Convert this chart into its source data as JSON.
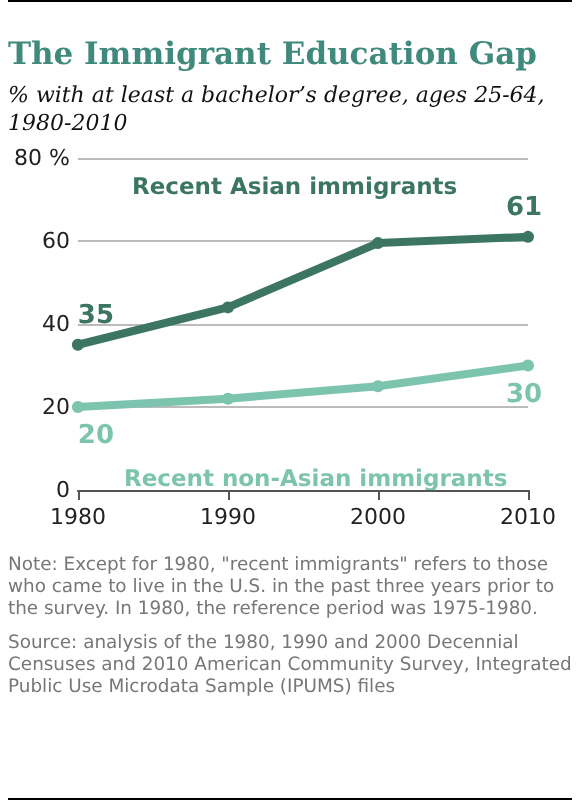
{
  "chart_data": {
    "type": "line",
    "title": "The Immigrant Education Gap",
    "subtitle": "% with at least a bachelor’s degree, ages 25-64, 1980-2010",
    "x": [
      1980,
      1990,
      2000,
      2010
    ],
    "xlim": [
      1980,
      2010
    ],
    "xticks": [
      1980,
      1990,
      2000,
      2010
    ],
    "ylim": [
      0,
      80
    ],
    "yticks": [
      0,
      20,
      40,
      60,
      {
        "value": 80,
        "label": "80 %"
      }
    ],
    "grid": "y",
    "legend": false,
    "marker": "circle",
    "line_style": "solid",
    "series": [
      {
        "name": "Recent Asian immigrants",
        "color": "#3c7663",
        "values": [
          35,
          44,
          59.5,
          61
        ],
        "value_labels": [
          "35",
          null,
          null,
          "61"
        ]
      },
      {
        "name": "Recent non-Asian immigrants",
        "color": "#7cc4ad",
        "values": [
          20,
          22,
          25,
          30
        ],
        "value_labels": [
          "20",
          null,
          null,
          "30"
        ]
      }
    ],
    "annotations": [
      "Note: Except for 1980, \"recent immigrants\" refers to those who came to live in the U.S. in the past three years prior to the survey. In 1980, the reference period was 1975-1980.",
      "Source: analysis of the 1980, 1990 and 2000 Decennial Censuses and 2010 American Community Survey, Integrated Public Use Microdata Sample (IPUMS) files"
    ]
  }
}
